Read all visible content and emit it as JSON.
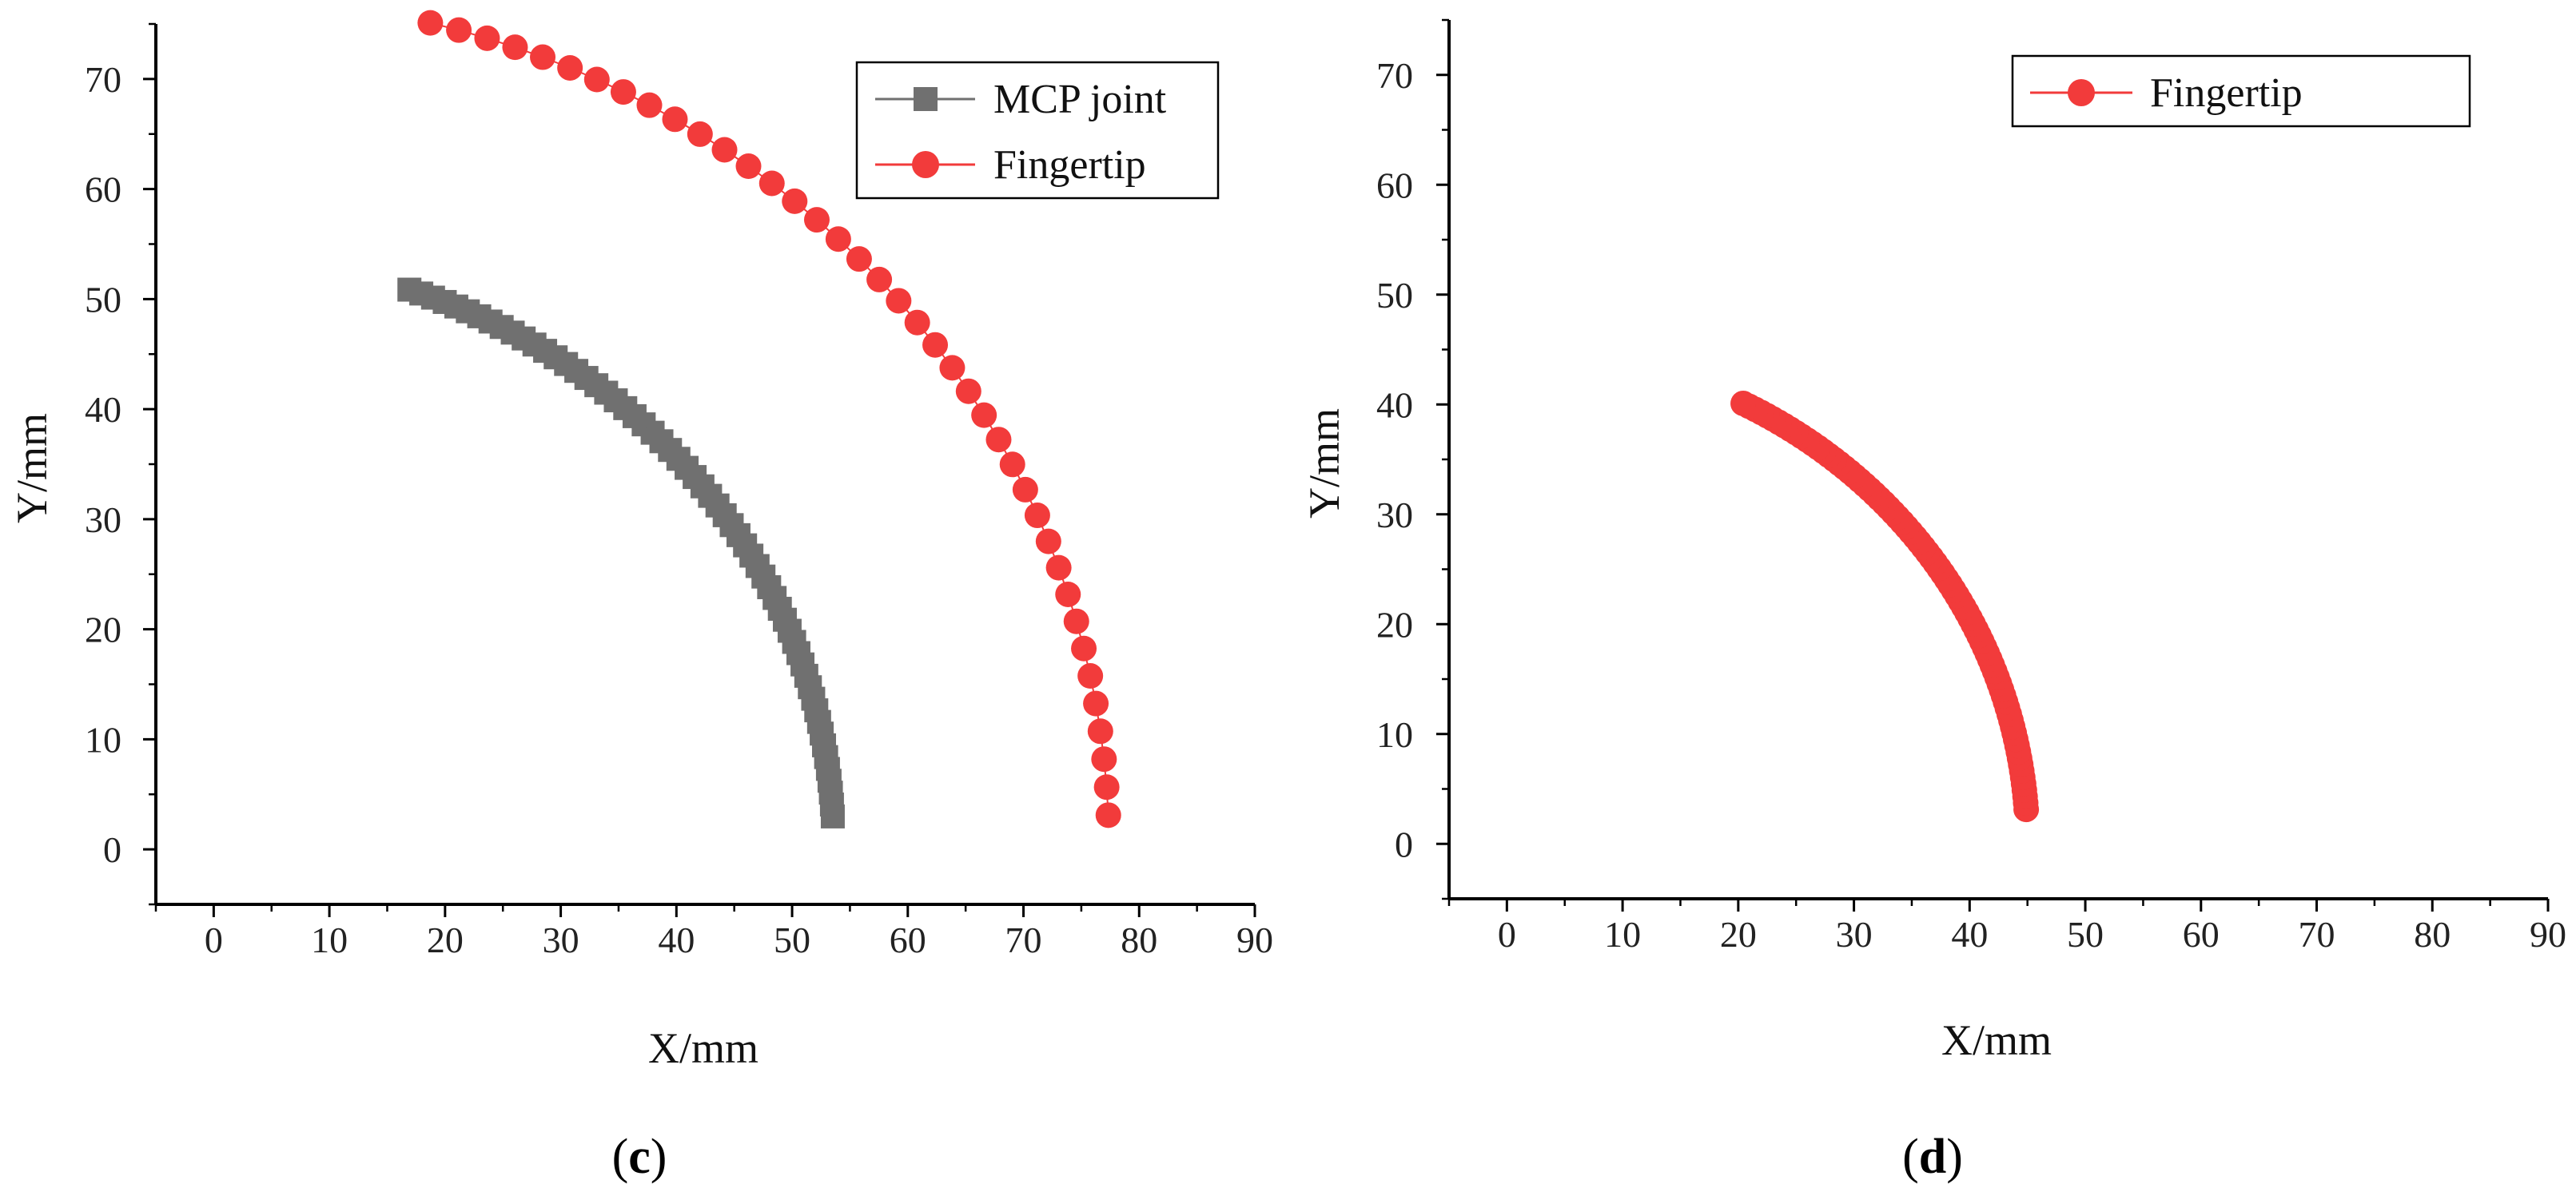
{
  "chart_data": [
    {
      "type": "scatter",
      "panel_label": "c",
      "xlabel": "X/mm",
      "ylabel": "Y/mm",
      "xlim": [
        -5,
        90
      ],
      "ylim": [
        -5,
        75
      ],
      "xticks": [
        0,
        10,
        20,
        30,
        40,
        50,
        60,
        70,
        80,
        90
      ],
      "yticks": [
        0,
        10,
        20,
        30,
        40,
        50,
        60,
        70
      ],
      "grid": false,
      "legend_position": "top-right",
      "series": [
        {
          "name": "MCP joint",
          "marker": "square",
          "color": "#707070",
          "arc": {
            "radius": 53.6,
            "start_deg": 3.2,
            "end_deg": 71.6,
            "count": 60
          }
        },
        {
          "name": "Fingertip",
          "marker": "circle",
          "color": "#f23b3b",
          "arc": {
            "radius": 77.4,
            "start_deg": 2.3,
            "end_deg": 76.0,
            "count": 40
          }
        }
      ]
    },
    {
      "type": "scatter",
      "panel_label": "d",
      "xlabel": "X/mm",
      "ylabel": "Y/mm",
      "xlim": [
        -5,
        90
      ],
      "ylim": [
        -5,
        75
      ],
      "xticks": [
        0,
        10,
        20,
        30,
        40,
        50,
        60,
        70,
        80,
        90
      ],
      "yticks": [
        0,
        10,
        20,
        30,
        40,
        50,
        60,
        70
      ],
      "grid": false,
      "legend_position": "top-right",
      "series": [
        {
          "name": "Fingertip",
          "marker": "circle",
          "color": "#f23b3b",
          "arc": {
            "radius": 45.0,
            "start_deg": 4.0,
            "end_deg": 63.0,
            "count": 80
          }
        }
      ]
    }
  ]
}
